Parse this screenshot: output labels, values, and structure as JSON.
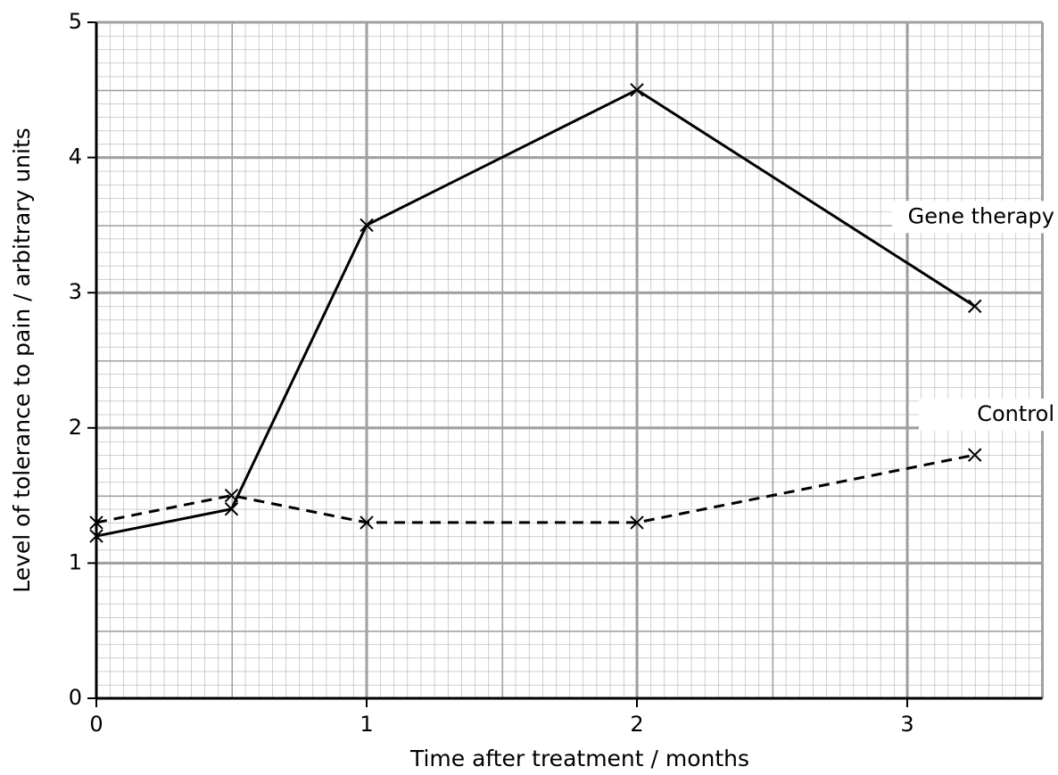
{
  "chart_data": {
    "type": "line",
    "x_label": "Time after treatment / months",
    "y_label": "Level of tolerance to pain / arbitrary units",
    "x": [
      0,
      0.5,
      1,
      2,
      3.25
    ],
    "series": [
      {
        "name": "Gene therapy",
        "color": "#000000",
        "linestyle": "solid",
        "values": [
          1.2,
          1.4,
          3.5,
          4.5,
          2.9
        ]
      },
      {
        "name": "Control",
        "color": "#000000",
        "linestyle": "dashed",
        "values": [
          1.3,
          1.5,
          1.3,
          1.3,
          1.8
        ]
      }
    ],
    "xlim": [
      0,
      3.5
    ],
    "xticks": [
      0,
      1,
      2,
      3
    ],
    "ylim": [
      0,
      5
    ],
    "yticks": [
      0,
      1,
      2,
      3,
      4,
      5
    ],
    "grid": true
  }
}
